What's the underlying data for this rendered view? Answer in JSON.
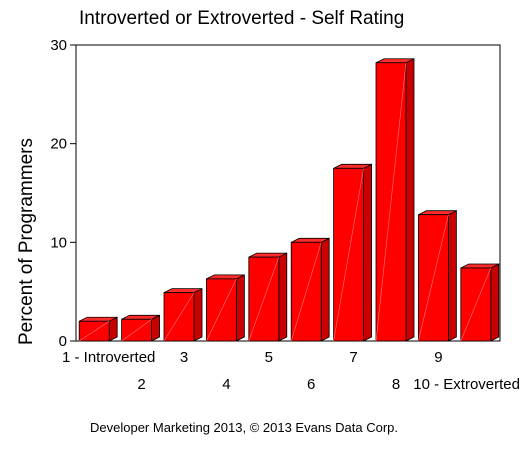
{
  "chart_data": {
    "type": "bar",
    "title": "Introverted or Extroverted - Self Rating",
    "ylabel": "Percent of Programmers",
    "xlabel": "",
    "ylim": [
      0,
      30
    ],
    "yticks": [
      0,
      10,
      20,
      30
    ],
    "categories": [
      "1 - Introverted",
      "2",
      "3",
      "4",
      "5",
      "6",
      "7",
      "8",
      "9",
      "10 - Extroverted"
    ],
    "values": [
      2.0,
      2.2,
      4.9,
      6.3,
      8.5,
      10.0,
      17.5,
      28.2,
      12.8,
      7.4
    ],
    "grid": false,
    "bar_color": "#ff0000",
    "bar_side_color": "#c80000",
    "bar_top_color": "#ff2a2a",
    "bar_style": "3d"
  },
  "footer": {
    "credit": "Developer Marketing 2013, © 2013 Evans Data Corp."
  }
}
